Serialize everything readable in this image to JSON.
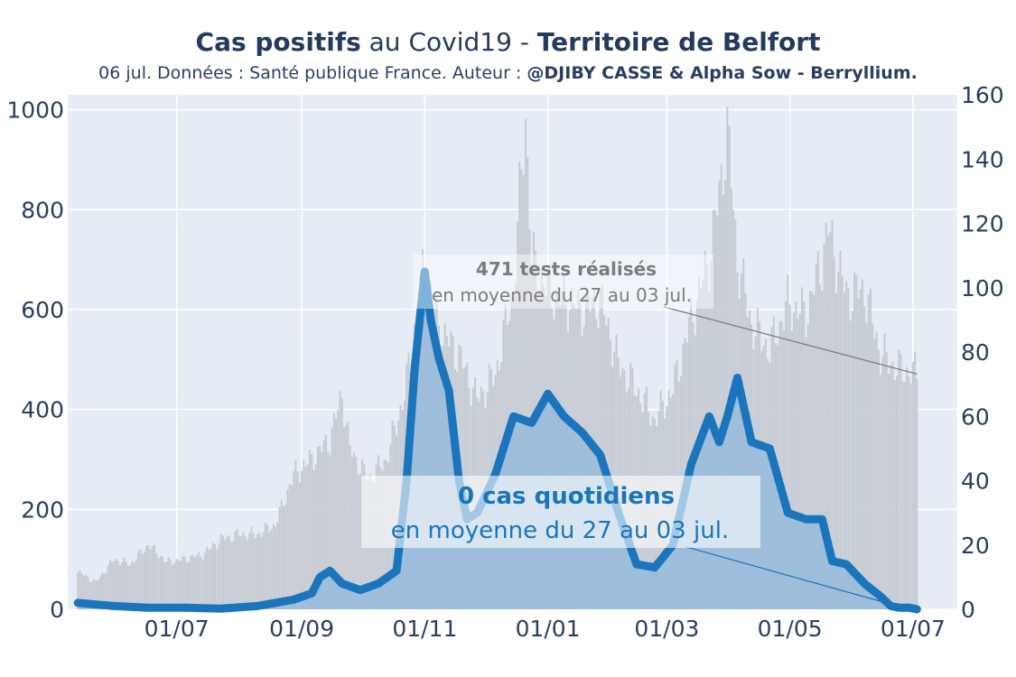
{
  "header": {
    "title_bold_1": "Cas positifs",
    "title_mid": " au Covid19 - ",
    "title_bold_2": "Territoire de Belfort",
    "subtitle_plain": "06 jul. Données : Santé publique France. Auteur : ",
    "subtitle_bold": "@DJIBY CASSE & Alpha Sow - Berryllium."
  },
  "annotations": {
    "tests_line1": "471 tests réalisés",
    "tests_line2": "en moyenne du 27 au 03 jul.",
    "cases_line1": "0 cas quotidiens",
    "cases_line2": "en moyenne du 27 au 03 jul."
  },
  "colors": {
    "plot_bg": "#e5ecf6",
    "grid": "#ffffff",
    "tests_bars": "#c6cbd3",
    "cases_line": "#1a75bc",
    "cases_fill": "#8fb8dc",
    "text": "#2a3f5f"
  },
  "chart_data": {
    "type": "line",
    "x_start": "2020-05-13",
    "x_end": "2021-07-03",
    "x_ticks": [
      "01/07",
      "01/09",
      "01/11",
      "01/01",
      "01/03",
      "01/05",
      "01/07"
    ],
    "x_tick_dates": [
      "2020-07-01",
      "2020-09-01",
      "2020-11-01",
      "2021-01-01",
      "2021-03-01",
      "2021-05-01",
      "2021-07-01"
    ],
    "y_left": {
      "ticks": [
        0,
        200,
        400,
        600,
        800,
        1000
      ],
      "range": [
        0,
        1030
      ]
    },
    "y_right": {
      "ticks": [
        0,
        20,
        40,
        60,
        80,
        100,
        120,
        140,
        160
      ],
      "range": [
        0,
        160
      ]
    },
    "series": [
      {
        "name": "tests",
        "type": "bar",
        "axis": "left",
        "points": [
          [
            "2020-05-13",
            75
          ],
          [
            "2020-05-22",
            55
          ],
          [
            "2020-05-31",
            100
          ],
          [
            "2020-06-08",
            90
          ],
          [
            "2020-06-17",
            130
          ],
          [
            "2020-06-26",
            95
          ],
          [
            "2020-07-05",
            100
          ],
          [
            "2020-07-14",
            110
          ],
          [
            "2020-07-23",
            140
          ],
          [
            "2020-08-01",
            150
          ],
          [
            "2020-08-10",
            150
          ],
          [
            "2020-08-19",
            170
          ],
          [
            "2020-08-28",
            270
          ],
          [
            "2020-09-06",
            300
          ],
          [
            "2020-09-15",
            340
          ],
          [
            "2020-09-21",
            430
          ],
          [
            "2020-09-25",
            320
          ],
          [
            "2020-10-04",
            260
          ],
          [
            "2020-10-13",
            300
          ],
          [
            "2020-10-22",
            430
          ],
          [
            "2020-10-27",
            560
          ],
          [
            "2020-11-01",
            690
          ],
          [
            "2020-11-08",
            560
          ],
          [
            "2020-11-18",
            510
          ],
          [
            "2020-11-27",
            420
          ],
          [
            "2020-12-06",
            470
          ],
          [
            "2020-12-15",
            640
          ],
          [
            "2020-12-21",
            990
          ],
          [
            "2020-12-24",
            700
          ],
          [
            "2021-01-01",
            640
          ],
          [
            "2021-01-09",
            620
          ],
          [
            "2021-01-18",
            600
          ],
          [
            "2021-01-27",
            620
          ],
          [
            "2021-02-05",
            490
          ],
          [
            "2021-02-14",
            440
          ],
          [
            "2021-02-23",
            380
          ],
          [
            "2021-03-04",
            440
          ],
          [
            "2021-03-13",
            580
          ],
          [
            "2021-03-22",
            700
          ],
          [
            "2021-03-27",
            830
          ],
          [
            "2021-03-31",
            960
          ],
          [
            "2021-04-05",
            700
          ],
          [
            "2021-04-12",
            570
          ],
          [
            "2021-04-21",
            520
          ],
          [
            "2021-04-30",
            610
          ],
          [
            "2021-05-09",
            590
          ],
          [
            "2021-05-17",
            700
          ],
          [
            "2021-05-20",
            760
          ],
          [
            "2021-05-29",
            630
          ],
          [
            "2021-06-07",
            640
          ],
          [
            "2021-06-15",
            510
          ],
          [
            "2021-06-24",
            480
          ],
          [
            "2021-07-03",
            471
          ]
        ]
      },
      {
        "name": "cas",
        "type": "line",
        "axis": "right",
        "points": [
          [
            "2020-05-13",
            2
          ],
          [
            "2020-05-22",
            1.5
          ],
          [
            "2020-05-31",
            1
          ],
          [
            "2020-06-17",
            0.5
          ],
          [
            "2020-07-05",
            0.5
          ],
          [
            "2020-07-23",
            0.2
          ],
          [
            "2020-08-10",
            1
          ],
          [
            "2020-08-28",
            3
          ],
          [
            "2020-09-06",
            5
          ],
          [
            "2020-09-10",
            10
          ],
          [
            "2020-09-15",
            12
          ],
          [
            "2020-09-21",
            8
          ],
          [
            "2020-09-30",
            6
          ],
          [
            "2020-10-09",
            8
          ],
          [
            "2020-10-18",
            12
          ],
          [
            "2020-10-23",
            40
          ],
          [
            "2020-10-27",
            75
          ],
          [
            "2020-11-01",
            105
          ],
          [
            "2020-11-04",
            90
          ],
          [
            "2020-11-08",
            78
          ],
          [
            "2020-11-13",
            68
          ],
          [
            "2020-11-18",
            40
          ],
          [
            "2020-11-22",
            28
          ],
          [
            "2020-11-27",
            30
          ],
          [
            "2020-12-06",
            42
          ],
          [
            "2020-12-15",
            60
          ],
          [
            "2020-12-24",
            58
          ],
          [
            "2021-01-01",
            67
          ],
          [
            "2021-01-09",
            60
          ],
          [
            "2021-01-18",
            55
          ],
          [
            "2021-01-27",
            48
          ],
          [
            "2021-02-05",
            30
          ],
          [
            "2021-02-14",
            14
          ],
          [
            "2021-02-23",
            13
          ],
          [
            "2021-03-04",
            20
          ],
          [
            "2021-03-13",
            45
          ],
          [
            "2021-03-22",
            60
          ],
          [
            "2021-03-27",
            52
          ],
          [
            "2021-03-31",
            60
          ],
          [
            "2021-04-05",
            72
          ],
          [
            "2021-04-12",
            52
          ],
          [
            "2021-04-21",
            50
          ],
          [
            "2021-04-30",
            30
          ],
          [
            "2021-05-09",
            28
          ],
          [
            "2021-05-17",
            28
          ],
          [
            "2021-05-22",
            15
          ],
          [
            "2021-05-29",
            14
          ],
          [
            "2021-06-07",
            8
          ],
          [
            "2021-06-15",
            4
          ],
          [
            "2021-06-20",
            1
          ],
          [
            "2021-06-24",
            0.5
          ],
          [
            "2021-06-29",
            0.5
          ],
          [
            "2021-07-03",
            0
          ]
        ]
      }
    ]
  }
}
